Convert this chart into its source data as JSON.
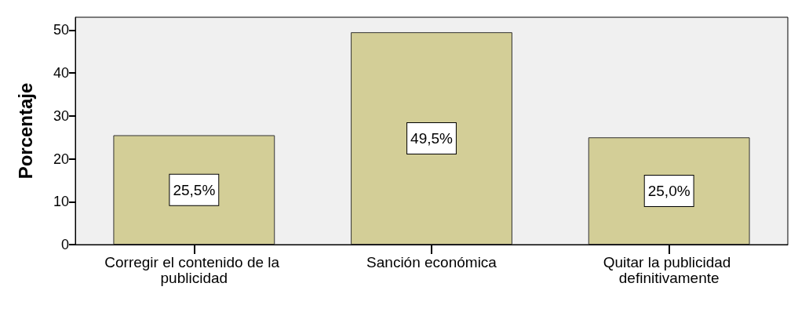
{
  "chart_data": {
    "type": "bar",
    "ylabel": "Porcentaje",
    "categories": [
      "Corregir el contenido de la publicidad",
      "Sanción económica",
      "Quitar la publicidad definitivamente"
    ],
    "values": [
      25.5,
      49.5,
      25.0
    ],
    "value_labels": [
      "25,5%",
      "49,5%",
      "25,0%"
    ],
    "color": "#d3ce97",
    "ylim": [
      0,
      53
    ],
    "yticks": [
      0,
      10,
      20,
      30,
      40,
      50
    ],
    "grid": false
  }
}
